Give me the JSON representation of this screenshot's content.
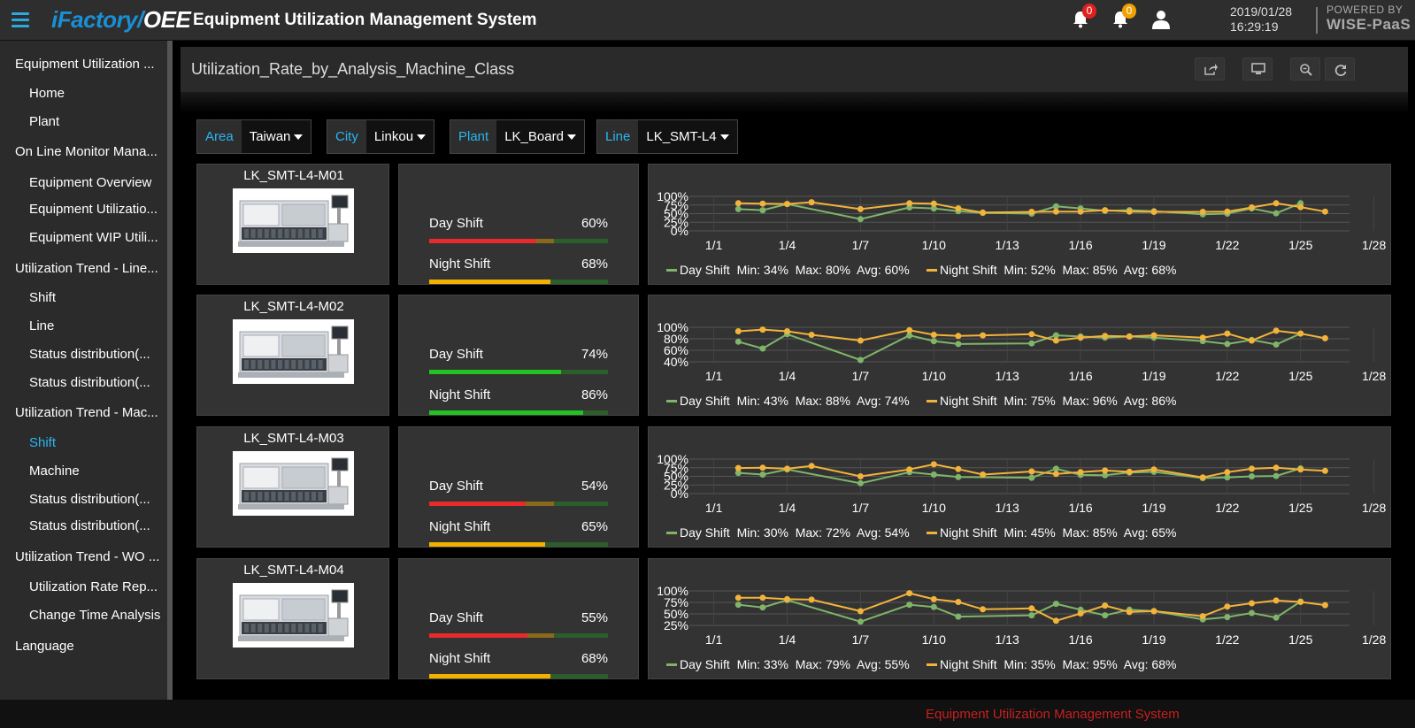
{
  "header": {
    "logo_part1": "iFactory/",
    "logo_part2": "OEE",
    "title": "Equipment Utilization Management System",
    "notifications": [
      {
        "icon": "bell-icon",
        "count": "0",
        "color": "#e02020"
      },
      {
        "icon": "bell-icon",
        "count": "0",
        "color": "#f0a000"
      }
    ],
    "user_icon": "user-icon",
    "date": "2019/01/28",
    "time": "16:29:19",
    "powered_line1": "POWERED BY",
    "powered_line2": "WISE-PaaS"
  },
  "sidebar": {
    "items": [
      {
        "label": "Equipment Utilization ...",
        "level": "top"
      },
      {
        "label": "Home",
        "level": "sub"
      },
      {
        "label": "Plant",
        "level": "sub"
      },
      {
        "label": "On Line Monitor Mana...",
        "level": "top"
      },
      {
        "label": "Equipment Overview",
        "level": "sub"
      },
      {
        "label": "Equipment Utilizatio...",
        "level": "sub"
      },
      {
        "label": "Equipment WIP Utili...",
        "level": "sub"
      },
      {
        "label": "Utilization Trend - Line...",
        "level": "top"
      },
      {
        "label": "Shift",
        "level": "sub"
      },
      {
        "label": "Line",
        "level": "sub"
      },
      {
        "label": "Status distribution(...",
        "level": "sub"
      },
      {
        "label": "Status distribution(...",
        "level": "sub"
      },
      {
        "label": "Utilization Trend - Mac...",
        "level": "top"
      },
      {
        "label": "Shift",
        "level": "sub",
        "active": true
      },
      {
        "label": "Machine",
        "level": "sub"
      },
      {
        "label": "Status distribution(...",
        "level": "sub"
      },
      {
        "label": "Status distribution(...",
        "level": "sub"
      },
      {
        "label": "Utilization Trend - WO ...",
        "level": "top"
      },
      {
        "label": "Utilization Rate Rep...",
        "level": "sub"
      },
      {
        "label": "Change Time Analysis",
        "level": "sub"
      },
      {
        "label": "Language",
        "level": "top"
      }
    ]
  },
  "panel": {
    "title": "Utilization_Rate_by_Analysis_Machine_Class",
    "tools": [
      "share-icon",
      "monitor-icon",
      "zoom-out-icon",
      "refresh-icon"
    ]
  },
  "filters": [
    {
      "label": "Area",
      "value": "Taiwan"
    },
    {
      "label": "City",
      "value": "Linkou"
    },
    {
      "label": "Plant",
      "value": "LK_Board"
    },
    {
      "label": "Line",
      "value": "LK_SMT-L4"
    }
  ],
  "machines": [
    {
      "name": "LK_SMT-L4-M01",
      "day": {
        "label": "Day Shift",
        "pct_text": "60%",
        "value": 60,
        "color": "#e82a2a"
      },
      "night": {
        "label": "Night Shift",
        "pct_text": "68%",
        "value": 68,
        "color": "#f2b100"
      },
      "legend_day": "Day Shift  Min: 34%  Max: 80%  Avg: 60%",
      "legend_night": "Night Shift  Min: 52%  Max: 85%  Avg: 68%"
    },
    {
      "name": "LK_SMT-L4-M02",
      "day": {
        "label": "Day Shift",
        "pct_text": "74%",
        "value": 74,
        "color": "#22c322"
      },
      "night": {
        "label": "Night Shift",
        "pct_text": "86%",
        "value": 86,
        "color": "#22c322"
      },
      "legend_day": "Day Shift  Min: 43%  Max: 88%  Avg: 74%",
      "legend_night": "Night Shift  Min: 75%  Max: 96%  Avg: 86%"
    },
    {
      "name": "LK_SMT-L4-M03",
      "day": {
        "label": "Day Shift",
        "pct_text": "54%",
        "value": 54,
        "color": "#e82a2a"
      },
      "night": {
        "label": "Night Shift",
        "pct_text": "65%",
        "value": 65,
        "color": "#f2b100"
      },
      "legend_day": "Day Shift  Min: 30%  Max: 72%  Avg: 54%",
      "legend_night": "Night Shift  Min: 45%  Max: 85%  Avg: 65%"
    },
    {
      "name": "LK_SMT-L4-M04",
      "day": {
        "label": "Day Shift",
        "pct_text": "55%",
        "value": 55,
        "color": "#e82a2a"
      },
      "night": {
        "label": "Night Shift",
        "pct_text": "68%",
        "value": 68,
        "color": "#f2b100"
      },
      "legend_day": "Day Shift  Min: 33%  Max: 79%  Avg: 55%",
      "legend_night": "Night Shift  Min: 35%  Max: 95%  Avg: 68%"
    }
  ],
  "chart_data": [
    {
      "type": "line",
      "x": [
        2,
        3,
        4,
        5,
        7,
        9,
        10,
        11,
        12,
        14,
        15,
        16,
        17,
        18,
        19,
        21,
        22,
        23,
        24,
        25,
        26
      ],
      "x_ticks": [
        "1/1",
        "1/4",
        "1/7",
        "1/10",
        "1/13",
        "1/16",
        "1/19",
        "1/22",
        "1/25",
        "1/28"
      ],
      "ylim": [
        0,
        100
      ],
      "y_ticks": [
        "100%",
        "75%",
        "50%",
        "25%",
        "0%"
      ],
      "series": [
        {
          "name": "Day Shift",
          "color": "#7fb56a",
          "values": [
            63,
            60,
            78,
            null,
            34,
            68,
            65,
            57,
            52,
            50,
            71,
            65,
            58,
            60,
            57,
            48,
            50,
            65,
            51,
            80,
            null
          ]
        },
        {
          "name": "Night Shift",
          "color": "#f2b33b",
          "values": [
            80,
            79,
            78,
            83,
            63,
            80,
            79,
            65,
            53,
            55,
            56,
            56,
            60,
            56,
            55,
            55,
            56,
            68,
            80,
            69,
            56
          ]
        }
      ],
      "grid": true,
      "legend": "bottom"
    },
    {
      "type": "line",
      "x": [
        2,
        3,
        4,
        5,
        7,
        9,
        10,
        11,
        12,
        14,
        15,
        16,
        17,
        18,
        19,
        21,
        22,
        23,
        24,
        25,
        26
      ],
      "x_ticks": [
        "1/1",
        "1/4",
        "1/7",
        "1/10",
        "1/13",
        "1/16",
        "1/19",
        "1/22",
        "1/25",
        "1/28"
      ],
      "ylim": [
        40,
        100
      ],
      "y_ticks": [
        "100%",
        "80%",
        "60%",
        "40%"
      ],
      "series": [
        {
          "name": "Day Shift",
          "color": "#7fb56a",
          "values": [
            75,
            63,
            88,
            null,
            43,
            86,
            76,
            71,
            null,
            72,
            86,
            84,
            82,
            84,
            82,
            76,
            71,
            78,
            70,
            89,
            null
          ]
        },
        {
          "name": "Night Shift",
          "color": "#f2b33b",
          "values": [
            93,
            96,
            93,
            87,
            77,
            95,
            87,
            85,
            86,
            88,
            77,
            82,
            85,
            84,
            86,
            82,
            89,
            77,
            94,
            89,
            81
          ]
        }
      ],
      "grid": true,
      "legend": "bottom"
    },
    {
      "type": "line",
      "x": [
        2,
        3,
        4,
        5,
        7,
        9,
        10,
        11,
        12,
        14,
        15,
        16,
        17,
        18,
        19,
        21,
        22,
        23,
        24,
        25,
        26
      ],
      "x_ticks": [
        "1/1",
        "1/4",
        "1/7",
        "1/10",
        "1/13",
        "1/16",
        "1/19",
        "1/22",
        "1/25",
        "1/28"
      ],
      "ylim": [
        0,
        100
      ],
      "y_ticks": [
        "100%",
        "75%",
        "50%",
        "25%",
        "0%"
      ],
      "series": [
        {
          "name": "Day Shift",
          "color": "#7fb56a",
          "values": [
            60,
            55,
            70,
            null,
            30,
            62,
            55,
            48,
            null,
            46,
            72,
            54,
            53,
            61,
            63,
            45,
            47,
            50,
            51,
            73,
            null
          ]
        },
        {
          "name": "Night Shift",
          "color": "#f2b33b",
          "values": [
            74,
            75,
            72,
            80,
            50,
            70,
            85,
            71,
            55,
            64,
            57,
            62,
            67,
            63,
            70,
            47,
            62,
            72,
            75,
            70,
            66
          ]
        }
      ],
      "grid": true,
      "legend": "bottom"
    },
    {
      "type": "line",
      "x": [
        2,
        3,
        4,
        5,
        7,
        9,
        10,
        11,
        12,
        14,
        15,
        16,
        17,
        18,
        19,
        21,
        22,
        23,
        24,
        25,
        26
      ],
      "x_ticks": [
        "1/1",
        "1/4",
        "1/7",
        "1/10",
        "1/13",
        "1/16",
        "1/19",
        "1/22",
        "1/25",
        "1/28"
      ],
      "ylim": [
        25,
        100
      ],
      "y_ticks": [
        "100%",
        "75%",
        "50%",
        "25%"
      ],
      "series": [
        {
          "name": "Day Shift",
          "color": "#7fb56a",
          "values": [
            70,
            64,
            80,
            null,
            33,
            70,
            65,
            44,
            null,
            47,
            72,
            59,
            47,
            59,
            56,
            38,
            43,
            52,
            42,
            77,
            null
          ]
        },
        {
          "name": "Night Shift",
          "color": "#f2b33b",
          "values": [
            85,
            85,
            82,
            81,
            56,
            95,
            82,
            76,
            60,
            62,
            35,
            51,
            68,
            54,
            56,
            45,
            66,
            73,
            79,
            76,
            69
          ]
        }
      ],
      "grid": true,
      "legend": "bottom"
    }
  ],
  "footer": {
    "text": "Equipment Utilization Management System"
  }
}
